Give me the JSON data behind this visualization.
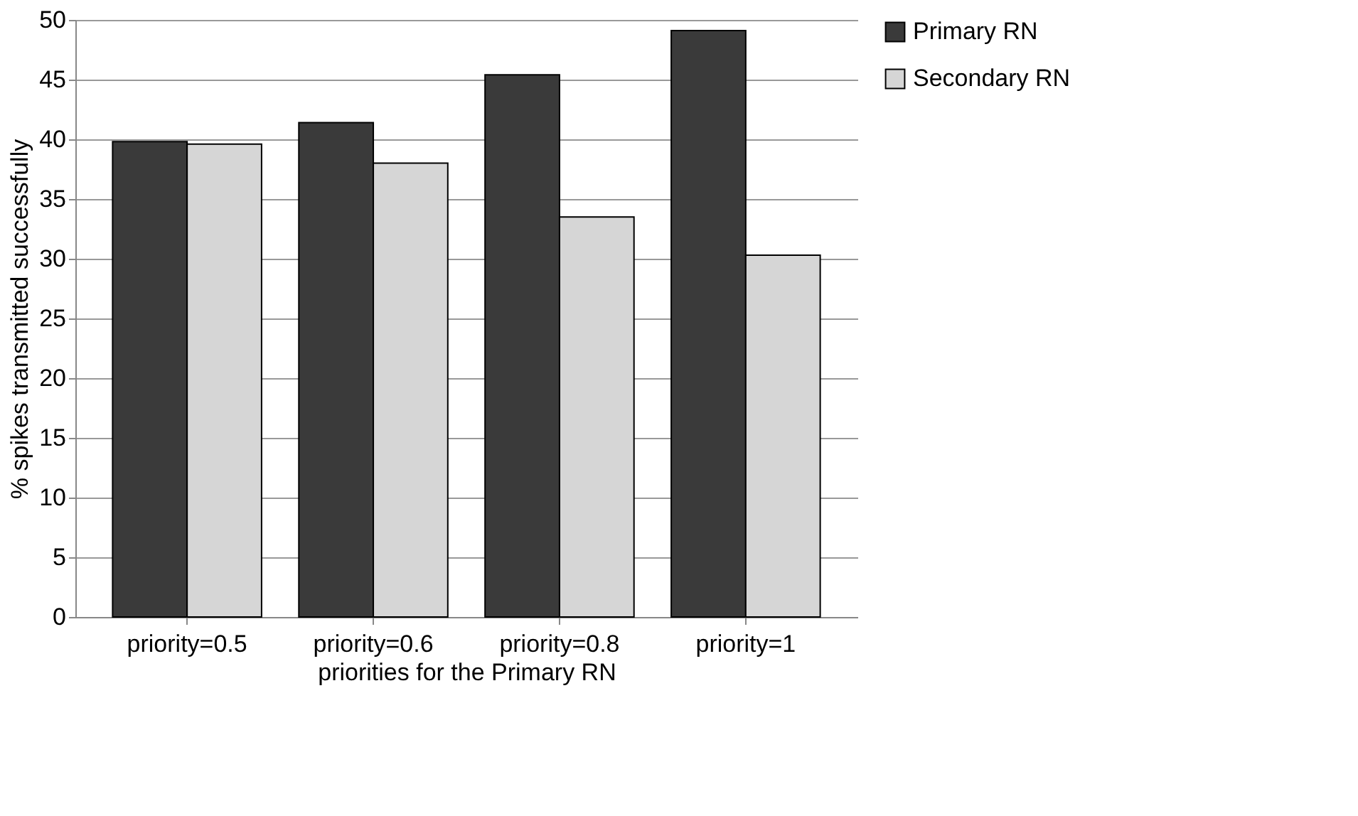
{
  "chart_data": {
    "type": "bar",
    "xlabel": "priorities for the Primary RN",
    "ylabel": "% spikes transmitted successfully",
    "categories": [
      "priority=0.5",
      "priority=0.6",
      "priority=0.8",
      "priority=1"
    ],
    "series": [
      {
        "name": "Primary RN",
        "color": "#3a3a3a",
        "values": [
          39.8,
          41.4,
          45.4,
          49.1
        ]
      },
      {
        "name": "Secondary RN",
        "color": "#d6d6d6",
        "values": [
          39.6,
          38.0,
          33.5,
          30.3
        ]
      }
    ],
    "ylim": [
      0,
      50
    ],
    "yticks": [
      0,
      5,
      10,
      15,
      20,
      25,
      30,
      35,
      40,
      45,
      50
    ],
    "grid": "y",
    "legend": "right"
  }
}
